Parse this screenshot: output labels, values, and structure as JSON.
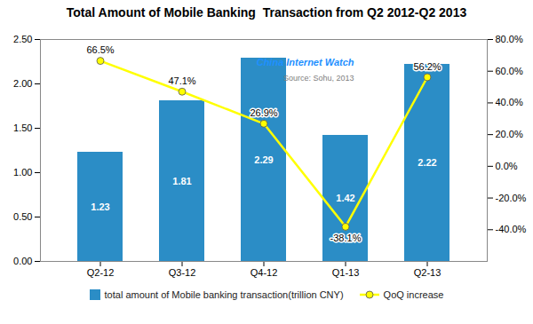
{
  "chart_data": {
    "type": "bar",
    "title": "Total Amount of Mobile Banking  Transaction from Q2 2012-Q2 2013",
    "categories": [
      "Q2-12",
      "Q3-12",
      "Q4-12",
      "Q1-13",
      "Q2-13"
    ],
    "series": [
      {
        "name": "total amount of Mobile banking transaction(trillion CNY)",
        "type": "bar",
        "color": "#2B8DC6",
        "values": [
          1.23,
          1.81,
          2.29,
          1.42,
          2.22
        ]
      },
      {
        "name": "QoQ increase",
        "type": "line",
        "axis": "y2",
        "color": "#FFFF00",
        "marker": "circle",
        "values": [
          66.5,
          47.1,
          26.9,
          -38.1,
          56.2
        ],
        "value_labels": [
          "66.5%",
          "47.1%",
          "26.9%",
          "-38.1%",
          "56.2%"
        ]
      }
    ],
    "ylim": [
      0,
      2.5
    ],
    "yticks": [
      {
        "value": 0,
        "label": "0.00"
      },
      {
        "value": 0.5,
        "label": "0.50"
      },
      {
        "value": 1,
        "label": "1.00"
      },
      {
        "value": 1.5,
        "label": "1.50"
      },
      {
        "value": 2,
        "label": "2.00"
      },
      {
        "value": 2.5,
        "label": "2.50"
      }
    ],
    "y2lim": [
      -60,
      80
    ],
    "y2ticks": [
      {
        "value": -40,
        "label": "-40.0%"
      },
      {
        "value": -20,
        "label": "-20.0%"
      },
      {
        "value": 0,
        "label": "0.0%"
      },
      {
        "value": 20,
        "label": "20.0%"
      },
      {
        "value": 40,
        "label": "40.0%"
      },
      {
        "value": 60,
        "label": "60.0%"
      },
      {
        "value": 80,
        "label": "80.0%"
      }
    ],
    "data_labels": true,
    "grid": false,
    "legend": "bottom",
    "annotations": [
      {
        "text": "China Internet Watch",
        "color": "#1E90FF"
      },
      {
        "text": "Source: Sohu, 2013",
        "color": "gray"
      }
    ]
  }
}
